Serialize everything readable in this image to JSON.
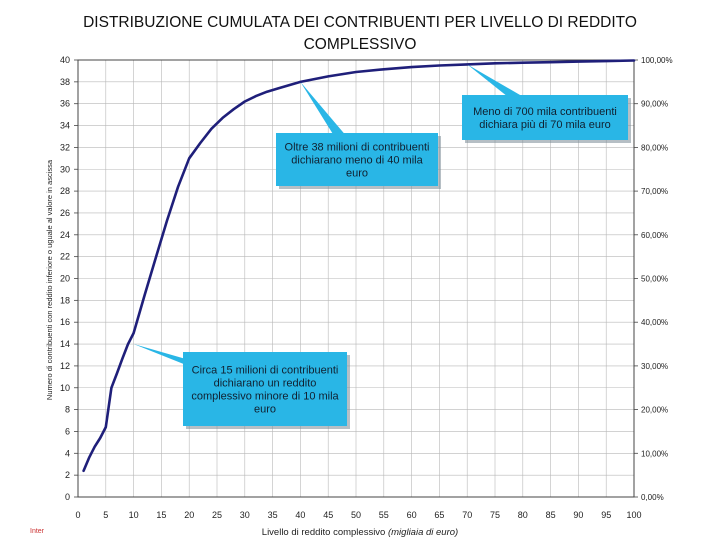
{
  "title_line1": "DISTRIBUZIONE CUMULATA DEI CONTRIBUENTI PER LIVELLO DI REDDITO",
  "title_line2": "COMPLESSIVO",
  "footer": "Inter",
  "colors": {
    "line": "#1f1f7a",
    "callout": "#29b6e6",
    "grid": "#b8b8b8"
  },
  "chart_data": {
    "type": "line",
    "xlabel": "Livello di reddito complessivo",
    "xlabel_unit": "(migliaia di euro)",
    "ylabel": "Numero di contribuenti con reddito inferiore o uguale al valore in ascissa",
    "xlim": [
      0,
      100
    ],
    "ylim": [
      0,
      40
    ],
    "ylim_right": [
      0,
      100
    ],
    "x_ticks": [
      "0",
      "5",
      "10",
      "15",
      "20",
      "25",
      "30",
      "35",
      "40",
      "45",
      "50",
      "55",
      "60",
      "65",
      "70",
      "75",
      "80",
      "85",
      "90",
      "95",
      "100"
    ],
    "y_ticks": [
      "0",
      "2",
      "4",
      "6",
      "8",
      "10",
      "12",
      "14",
      "16",
      "18",
      "20",
      "22",
      "24",
      "26",
      "28",
      "30",
      "32",
      "34",
      "36",
      "38",
      "40"
    ],
    "y2_ticks": [
      "0,00%",
      "10,00%",
      "20,00%",
      "30,00%",
      "40,00%",
      "50,00%",
      "60,00%",
      "70,00%",
      "80,00%",
      "90,00%",
      "100,00%"
    ],
    "grid": true,
    "series": [
      {
        "x": [
          1,
          2,
          3,
          4,
          5,
          6,
          7,
          8,
          9,
          10,
          12,
          14,
          16,
          18,
          20,
          22,
          24,
          26,
          28,
          30,
          32,
          34,
          36,
          38,
          40,
          45,
          50,
          55,
          60,
          65,
          70,
          75,
          80,
          85,
          90,
          95,
          100
        ],
        "y": [
          2.4,
          3.6,
          4.6,
          5.4,
          6.4,
          10.0,
          11.3,
          12.7,
          14.0,
          15.0,
          18.5,
          21.9,
          25.3,
          28.4,
          31.0,
          32.4,
          33.7,
          34.7,
          35.5,
          36.2,
          36.7,
          37.1,
          37.4,
          37.7,
          38.0,
          38.5,
          38.9,
          39.15,
          39.35,
          39.5,
          39.6,
          39.7,
          39.75,
          39.8,
          39.85,
          39.9,
          39.95
        ]
      }
    ],
    "annotations": [
      {
        "text": "Meno di 700 mila contribuenti dichiara più di 70 mila euro",
        "lines": [
          "Meno di 700 mila contribuenti",
          "dichiara più di 70 mila euro"
        ],
        "x": 70,
        "y": 39.6
      },
      {
        "text": "Oltre 38 milioni di contribuenti dichiarano meno di 40 mila euro",
        "lines": [
          "Oltre 38 milioni di contribuenti",
          "dichiarano meno di 40 mila",
          "euro"
        ],
        "x": 40,
        "y": 38.0
      },
      {
        "text": "Circa 15 milioni di contribuenti dichiarano un reddito complessivo minore di 10 mila euro",
        "lines": [
          "Circa 15 milioni di contribuenti",
          "dichiarano un reddito",
          "complessivo minore di 10 mila",
          "euro"
        ],
        "x": 10,
        "y": 14.0
      }
    ]
  }
}
